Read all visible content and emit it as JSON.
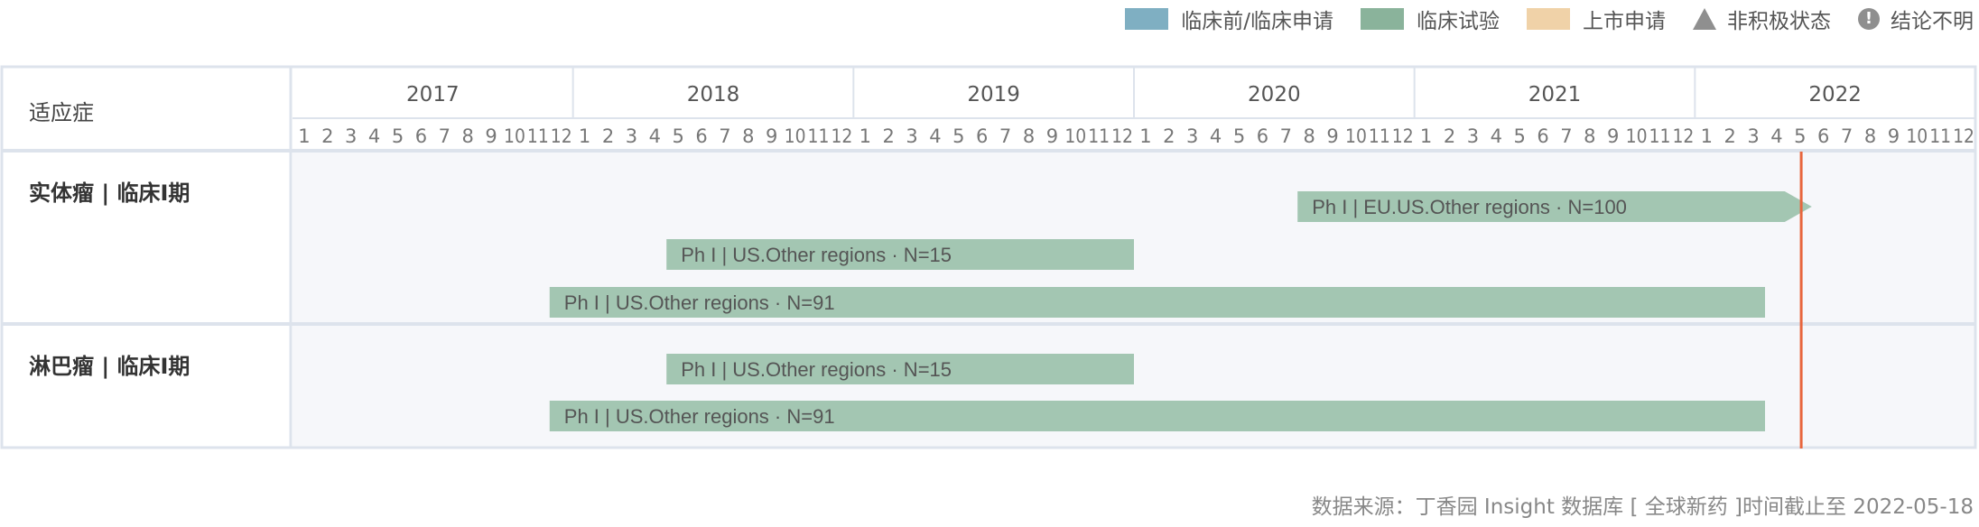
{
  "legend": {
    "items": [
      {
        "label": "临床前/临床申请",
        "color": "#7fafc2",
        "shape": "swatch"
      },
      {
        "label": "临床试验",
        "color": "#8ab39b",
        "shape": "swatch"
      },
      {
        "label": "上市申请",
        "color": "#f0d2a8",
        "shape": "swatch"
      },
      {
        "label": "非积极状态",
        "color": "#8f8f8f",
        "shape": "triangle-icon"
      },
      {
        "label": "结论不明",
        "color": "#8f8f8f",
        "shape": "exclamation-icon"
      }
    ]
  },
  "chart_data": {
    "type": "gantt",
    "column_header": "适应症",
    "years": [
      "2017",
      "2018",
      "2019",
      "2020",
      "2021",
      "2022"
    ],
    "month_labels": [
      "1",
      "2",
      "3",
      "4",
      "5",
      "6",
      "7",
      "8",
      "9",
      "10",
      "11",
      "12"
    ],
    "x_range": [
      "2017-01",
      "2022-12"
    ],
    "current_date_marker": "2022-05-18",
    "bar_color": "#a3c6b2",
    "marker_color": "#e8663d",
    "rows": [
      {
        "label": "实体瘤 | 临床I期",
        "bars": [
          {
            "label": "Ph I | EU.US.Other regions · N=100",
            "start": "2020-08",
            "end": "2022-05",
            "arrow": true
          },
          {
            "label": "Ph I | US.Other regions · N=15",
            "start": "2018-05",
            "end": "2019-12",
            "arrow": false
          },
          {
            "label": "Ph I | US.Other regions · N=91",
            "start": "2017-12",
            "end": "2022-03",
            "arrow": false
          }
        ]
      },
      {
        "label": "淋巴瘤 | 临床I期",
        "bars": [
          {
            "label": "Ph I | US.Other regions · N=15",
            "start": "2018-05",
            "end": "2019-12",
            "arrow": false
          },
          {
            "label": "Ph I | US.Other regions · N=91",
            "start": "2017-12",
            "end": "2022-03",
            "arrow": false
          }
        ]
      }
    ]
  },
  "footer": {
    "source": "数据来源：丁香园 Insight 数据库 [ 全球新药 ]时间截止至 2022-05-18"
  }
}
